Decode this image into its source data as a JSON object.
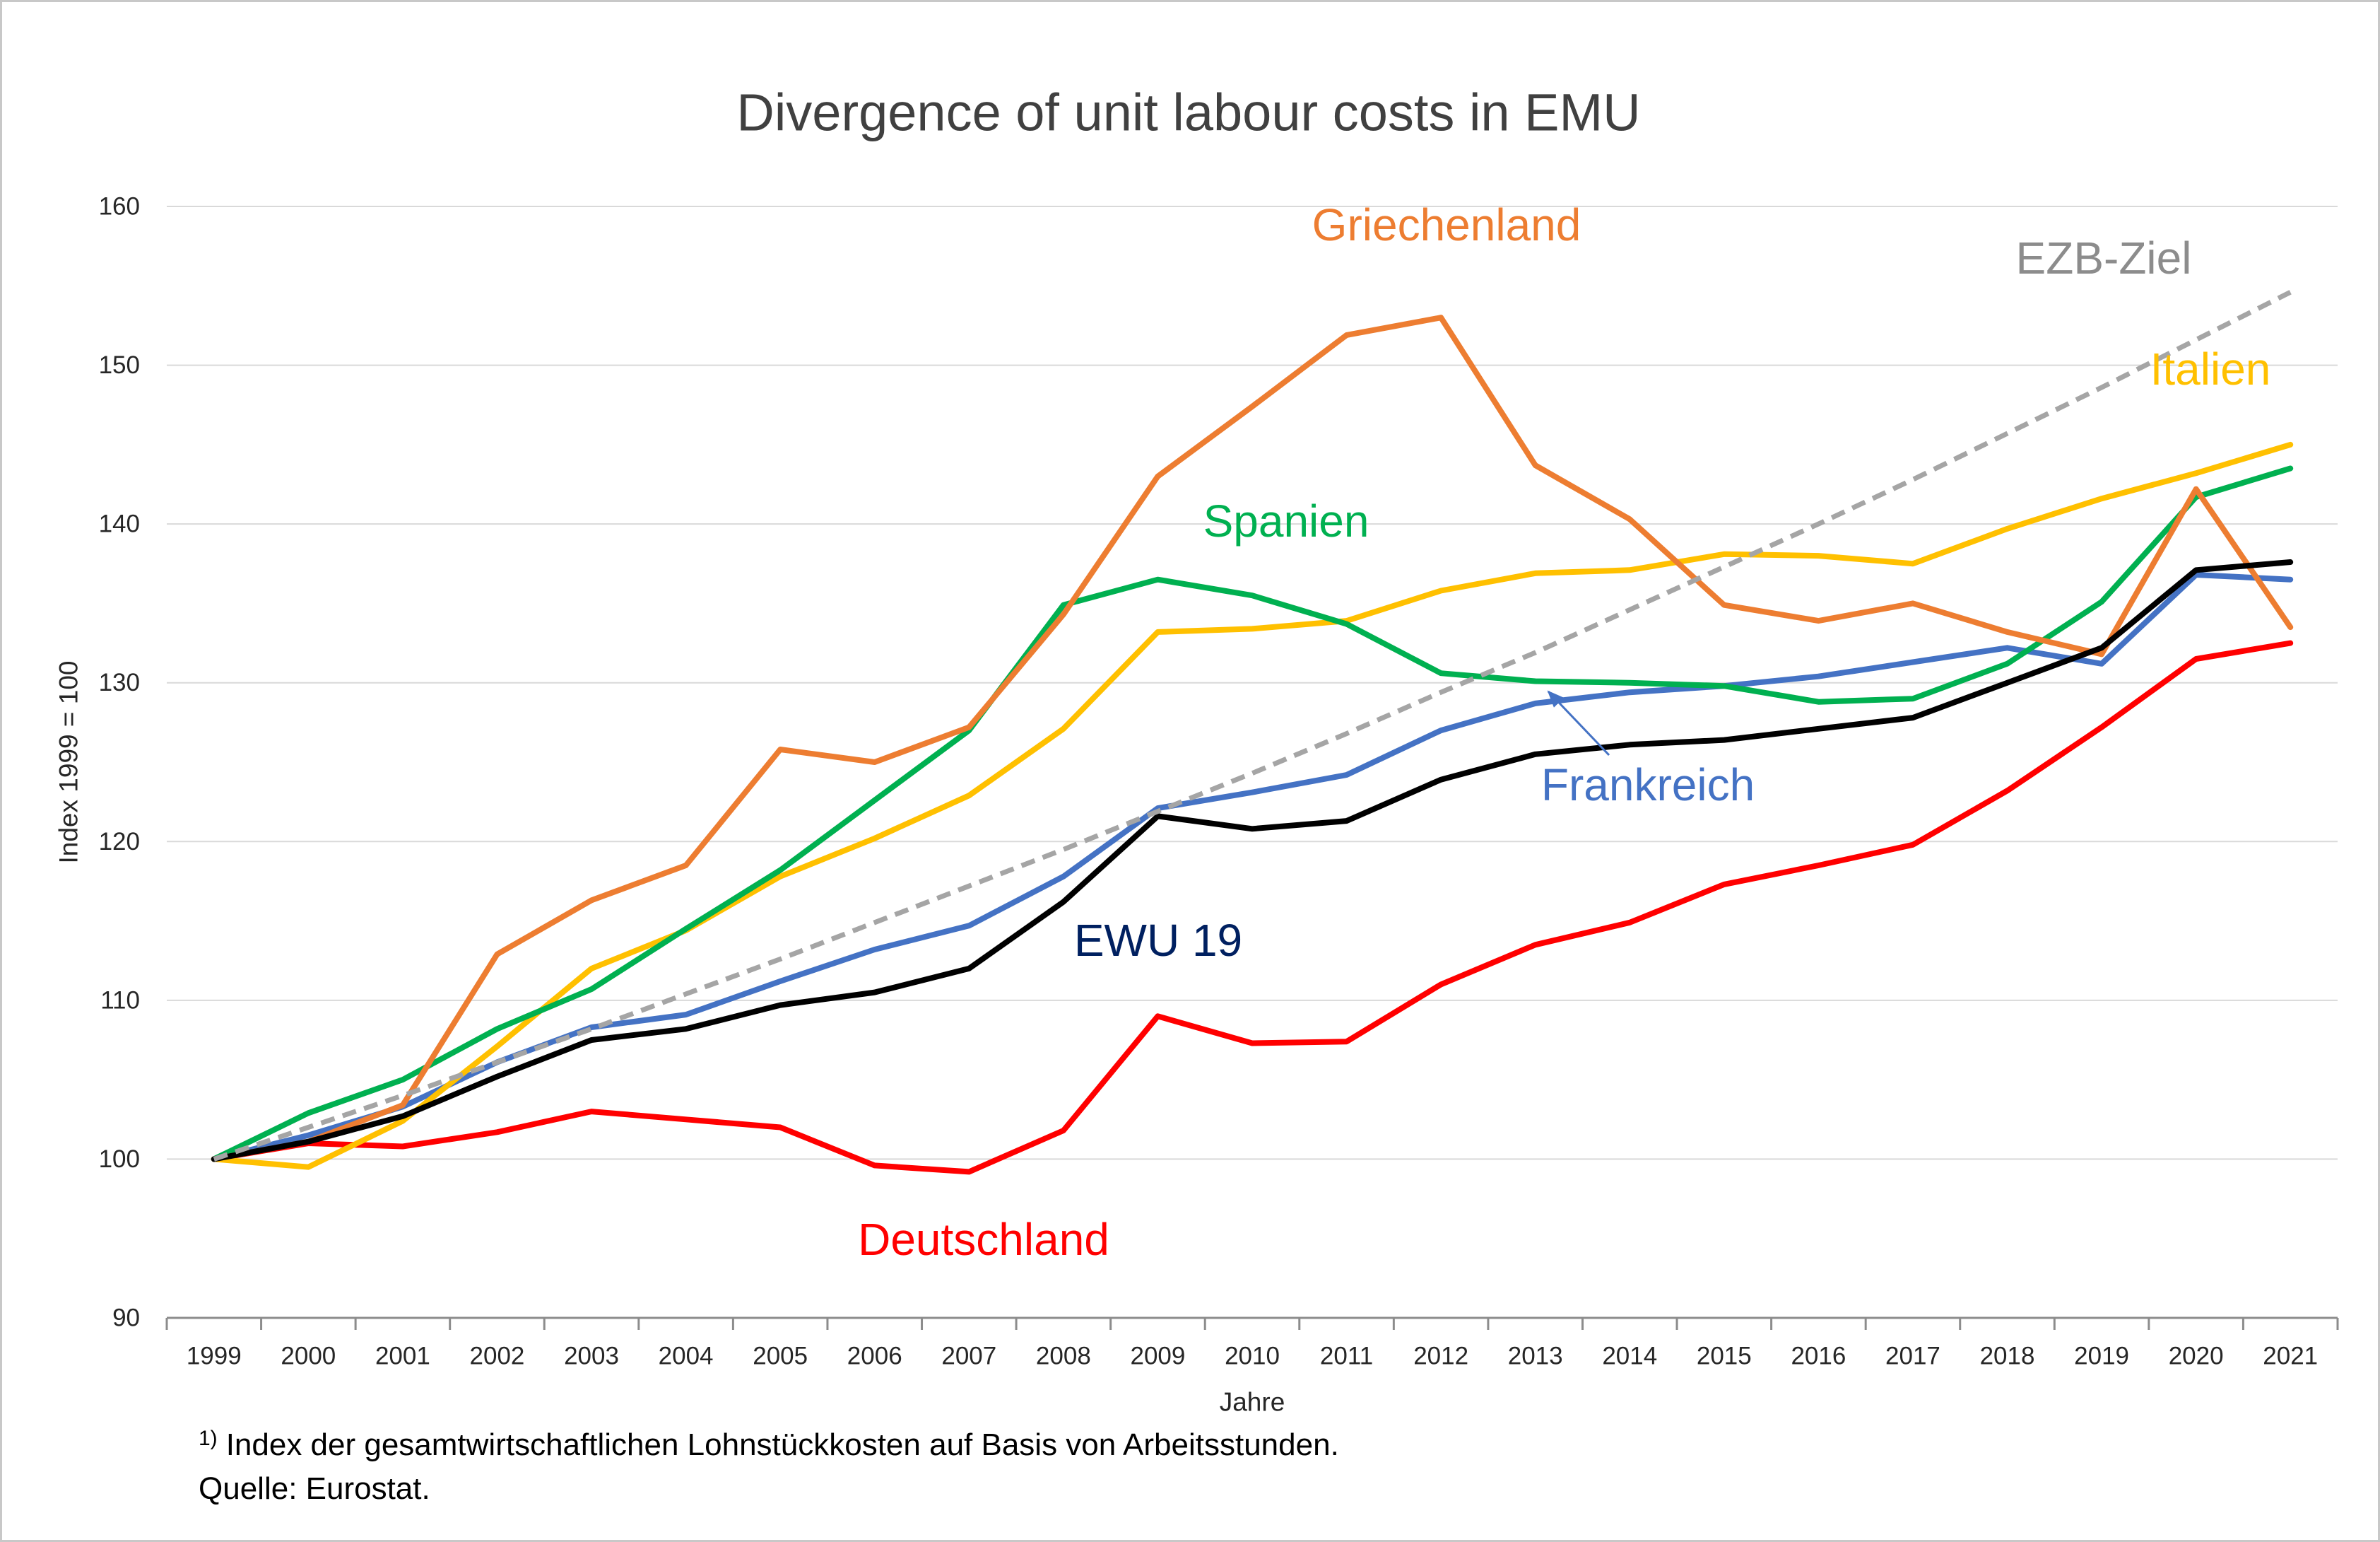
{
  "chart_data": {
    "type": "line",
    "title": "Divergence of unit labour costs in EMU",
    "xlabel": "Jahre",
    "ylabel": "Index 1999 = 100",
    "ylim": [
      90,
      160
    ],
    "yticks": [
      90,
      100,
      110,
      120,
      130,
      140,
      150,
      160
    ],
    "grid": true,
    "legend": "none",
    "categories": [
      "1999",
      "2000",
      "2001",
      "2002",
      "2003",
      "2004",
      "2005",
      "2006",
      "2007",
      "2008",
      "2009",
      "2010",
      "2011",
      "2012",
      "2013",
      "2014",
      "2015",
      "2016",
      "2017",
      "2018",
      "2019",
      "2020",
      "2021"
    ],
    "series": [
      {
        "name": "Deutschland",
        "color": "#FF0000",
        "label_color": "#FF0000",
        "dashed": false,
        "values": [
          100,
          101.0,
          100.8,
          101.7,
          103.0,
          102.5,
          102.0,
          99.6,
          99.2,
          101.8,
          109.0,
          107.3,
          107.4,
          111.0,
          113.5,
          114.9,
          117.3,
          118.5,
          119.8,
          123.2,
          127.2,
          131.5,
          132.5
        ]
      },
      {
        "name": "Frankreich",
        "color": "#4472C4",
        "label_color": "#4472C4",
        "dashed": false,
        "values": [
          100,
          101.5,
          103.3,
          106.1,
          108.3,
          109.1,
          111.2,
          113.2,
          114.7,
          117.8,
          122.1,
          123.1,
          124.2,
          127.0,
          128.7,
          129.4,
          129.8,
          130.4,
          131.3,
          132.2,
          131.2,
          136.8,
          136.5
        ]
      },
      {
        "name": "Italien",
        "color": "#FFC000",
        "label_color": "#FFC000",
        "dashed": false,
        "values": [
          100,
          99.5,
          102.4,
          107.1,
          112.0,
          114.4,
          117.8,
          120.2,
          122.9,
          127.1,
          133.2,
          133.4,
          133.9,
          135.8,
          136.9,
          137.1,
          138.1,
          138.0,
          137.5,
          139.7,
          141.6,
          143.2,
          145.0
        ]
      },
      {
        "name": "Spanien",
        "color": "#00B050",
        "label_color": "#00B050",
        "dashed": false,
        "values": [
          100,
          102.9,
          105.0,
          108.2,
          110.7,
          114.5,
          118.2,
          122.6,
          127.0,
          134.9,
          136.5,
          135.5,
          133.7,
          130.6,
          130.1,
          130.0,
          129.8,
          128.8,
          129.0,
          131.2,
          135.1,
          141.7,
          143.5
        ]
      },
      {
        "name": "Griechenland",
        "color": "#ED7D31",
        "label_color": "#ED7D31",
        "dashed": false,
        "values": [
          100,
          101.1,
          103.4,
          112.9,
          116.3,
          118.5,
          125.8,
          125.0,
          127.2,
          134.3,
          143.0,
          147.4,
          151.9,
          153.0,
          143.7,
          140.3,
          134.9,
          133.9,
          135.0,
          133.2,
          131.8,
          142.2,
          133.5
        ]
      },
      {
        "name": "EWU 19",
        "color": "#000000",
        "label_color": "#002060",
        "dashed": false,
        "values": [
          100,
          101.1,
          102.7,
          105.2,
          107.5,
          108.2,
          109.7,
          110.5,
          112.0,
          116.2,
          121.6,
          120.8,
          121.3,
          123.9,
          125.5,
          126.1,
          126.4,
          127.1,
          127.8,
          130.0,
          132.2,
          137.1,
          137.6
        ]
      },
      {
        "name": "EZB-Ziel",
        "color": "#A5A5A5",
        "label_color": "#8C8C8C",
        "dashed": true,
        "values": [
          100,
          102.0,
          104.0,
          106.1,
          108.2,
          110.4,
          112.6,
          114.9,
          117.2,
          119.5,
          121.9,
          124.3,
          126.8,
          129.4,
          131.9,
          134.6,
          137.3,
          140.0,
          142.8,
          145.7,
          148.6,
          151.6,
          154.6
        ]
      }
    ]
  },
  "footnote": {
    "marker": "1)",
    "text": "Index der gesamtwirtschaftlichen Lohnstückkosten auf Basis von Arbeitsstunden."
  },
  "source": "Quelle: Eurostat."
}
